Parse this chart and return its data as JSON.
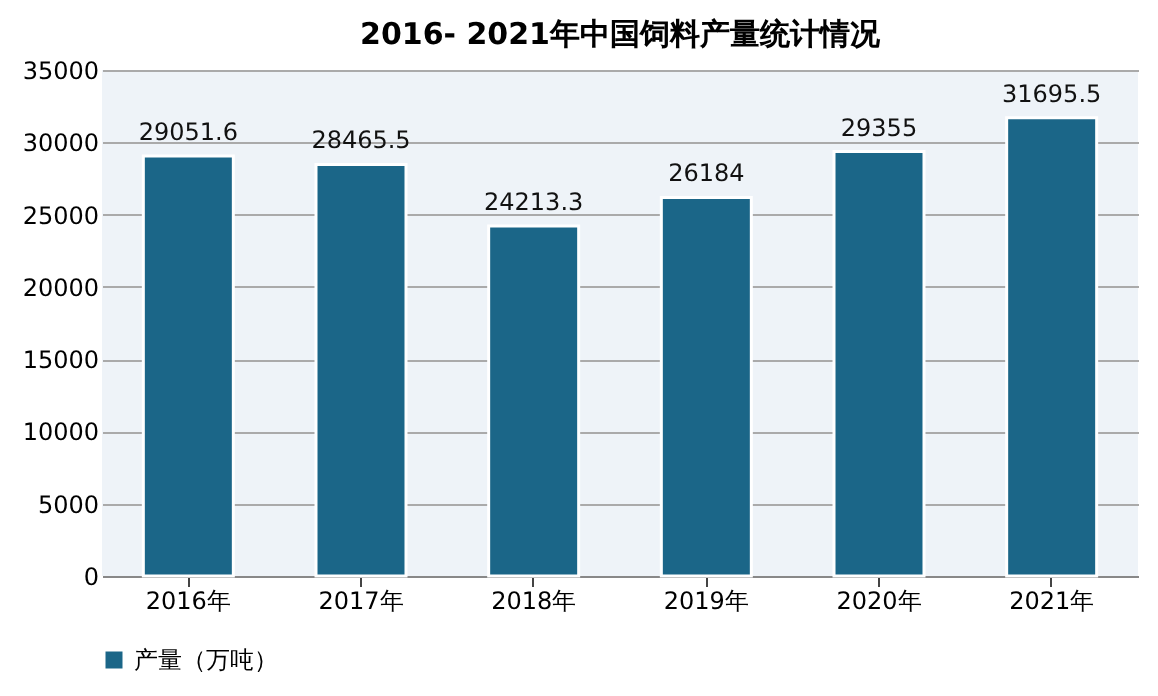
{
  "chart_data": {
    "type": "bar",
    "title": "2016- 2021年中国饲料产量统计情况",
    "categories": [
      "2016年",
      "2017年",
      "2018年",
      "2019年",
      "2020年",
      "2021年"
    ],
    "series": [
      {
        "name": "产量（万吨）",
        "color": "#1b6688",
        "values": [
          29051.6,
          28465.5,
          24213.3,
          26184,
          29355,
          31695.5
        ]
      }
    ],
    "ylim": [
      0,
      35000
    ],
    "yticks": [
      0,
      5000,
      10000,
      15000,
      20000,
      25000,
      30000,
      35000
    ],
    "grid": "y",
    "legend": "bottom",
    "data_labels": true
  }
}
